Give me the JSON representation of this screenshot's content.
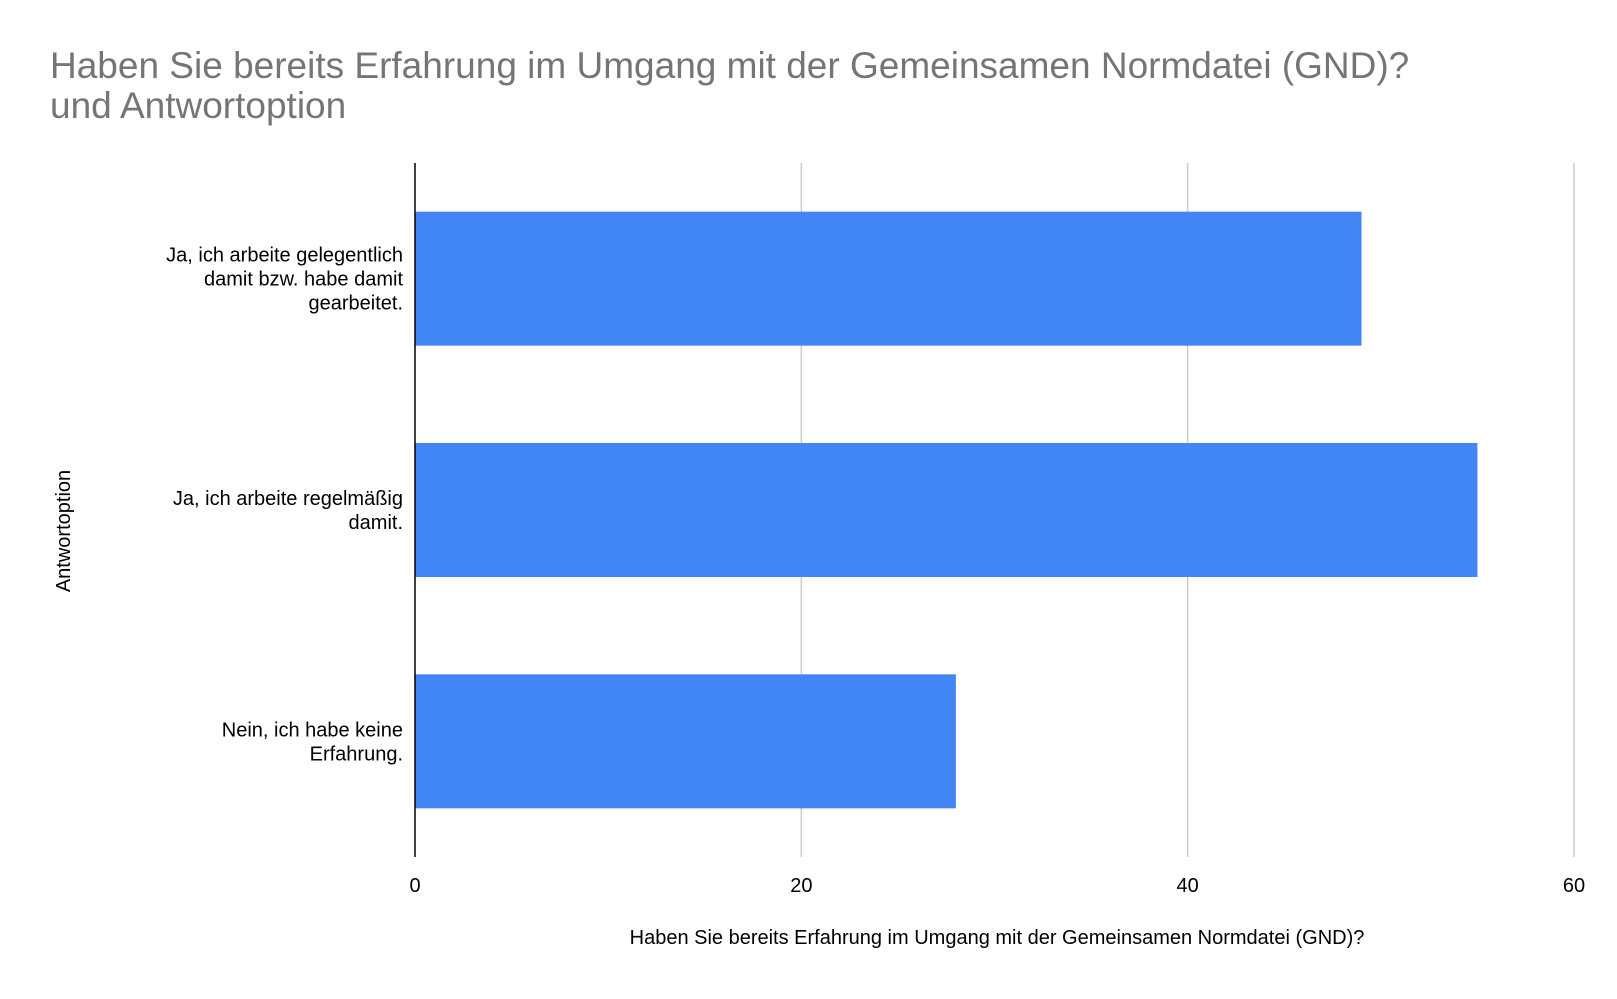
{
  "title": {
    "line1": "Haben Sie bereits Erfahrung im Umgang mit der Gemeinsamen Normdatei (GND)?",
    "line2": "und Antwortoption"
  },
  "colors": {
    "bar": "#4285f4",
    "grid": "#cccccc",
    "axis": "#000000",
    "title": "#757575"
  },
  "chart_data": {
    "type": "bar",
    "orientation": "horizontal",
    "title": "Haben Sie bereits Erfahrung im Umgang mit der Gemeinsamen Normdatei (GND)? und Antwortoption",
    "xlabel": "Haben Sie bereits Erfahrung im Umgang mit der Gemeinsamen Normdatei (GND)?",
    "ylabel": "Antwortoption",
    "categories": [
      [
        "Ja, ich arbeite gelegentlich",
        "damit bzw. habe damit",
        "gearbeitet."
      ],
      [
        "Ja, ich arbeite regelmäßig",
        "damit."
      ],
      [
        "Nein, ich habe keine",
        "Erfahrung."
      ]
    ],
    "values": [
      49,
      55,
      28
    ],
    "xlim": [
      0,
      60
    ],
    "xticks": [
      0,
      20,
      40,
      60
    ],
    "grid": "vertical",
    "legend": "none"
  }
}
